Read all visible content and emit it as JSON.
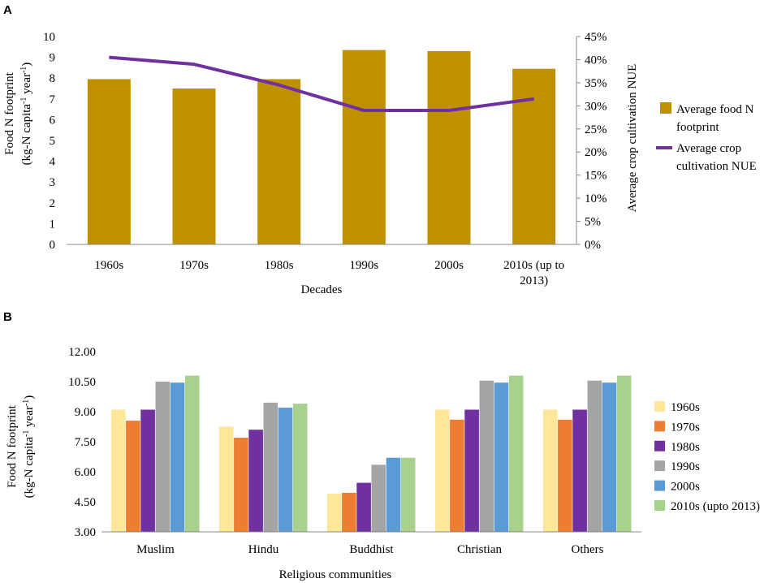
{
  "panel_labels": {
    "a": "A",
    "b": "B"
  },
  "chart_data": [
    {
      "type": "bar+line",
      "panel": "A",
      "categories": [
        "1960s",
        "1970s",
        "1980s",
        "1990s",
        "2000s",
        "2010s (up to 2013)"
      ],
      "category_lines": [
        [
          "1960s"
        ],
        [
          "1970s"
        ],
        [
          "1980s"
        ],
        [
          "1990s"
        ],
        [
          "2000s"
        ],
        [
          "2010s (up to",
          "2013)"
        ]
      ],
      "series": [
        {
          "name": "Average food N footprint",
          "kind": "bar",
          "axis": "left",
          "color": "#bf9000",
          "values": [
            7.95,
            7.5,
            7.95,
            9.35,
            9.3,
            8.45
          ]
        },
        {
          "name": "Average crop cultivation NUE",
          "kind": "line",
          "axis": "right",
          "color": "#7030a0",
          "values": [
            40.5,
            39.0,
            34.5,
            29.0,
            29.0,
            31.5
          ]
        }
      ],
      "legend_lines": [
        [
          "Average food N",
          "footprint"
        ],
        [
          "Average crop",
          "cultivation NUE"
        ]
      ],
      "xlabel": "Decades",
      "ylabel_lines": [
        "Food N footprint",
        "(kg-N capita",
        "-1",
        " year",
        "-1",
        ")"
      ],
      "y2label": "Average crop cultivation NUE",
      "ylim": [
        0,
        10
      ],
      "yticks": [
        "0",
        "1",
        "2",
        "3",
        "4",
        "5",
        "6",
        "7",
        "8",
        "9",
        "10"
      ],
      "y2lim": [
        0,
        45
      ],
      "y2ticks": [
        "0%",
        "5%",
        "10%",
        "15%",
        "20%",
        "25%",
        "30%",
        "35%",
        "40%",
        "45%"
      ],
      "legend_position": "right"
    },
    {
      "type": "bar",
      "panel": "B",
      "categories": [
        "Muslim",
        "Hindu",
        "Buddhist",
        "Christian",
        "Others"
      ],
      "series": [
        {
          "name": "1960s",
          "color": "#ffe699",
          "values": [
            9.1,
            8.25,
            4.9,
            9.1,
            9.1
          ]
        },
        {
          "name": "1970s",
          "color": "#ed7d31",
          "values": [
            8.55,
            7.7,
            4.95,
            8.6,
            8.6
          ]
        },
        {
          "name": "1980s",
          "color": "#7030a0",
          "values": [
            9.1,
            8.1,
            5.45,
            9.1,
            9.1
          ]
        },
        {
          "name": "1990s",
          "color": "#a5a5a5",
          "values": [
            10.5,
            9.45,
            6.35,
            10.55,
            10.55
          ]
        },
        {
          "name": "2000s",
          "color": "#5b9bd5",
          "values": [
            10.45,
            9.2,
            6.7,
            10.45,
            10.45
          ]
        },
        {
          "name": "2010s (upto 2013)",
          "color": "#a9d18e",
          "values": [
            10.8,
            9.4,
            6.7,
            10.8,
            10.8
          ]
        }
      ],
      "xlabel": "Religious communities",
      "ylabel_lines": [
        "Food N footprint",
        "(kg-N capita",
        "-1",
        " year",
        "-1",
        ")"
      ],
      "ylim": [
        3,
        12
      ],
      "yticks": [
        "3.00",
        "4.50",
        "6.00",
        "7.50",
        "9.00",
        "10.50",
        "12.00"
      ],
      "legend_position": "right"
    }
  ]
}
